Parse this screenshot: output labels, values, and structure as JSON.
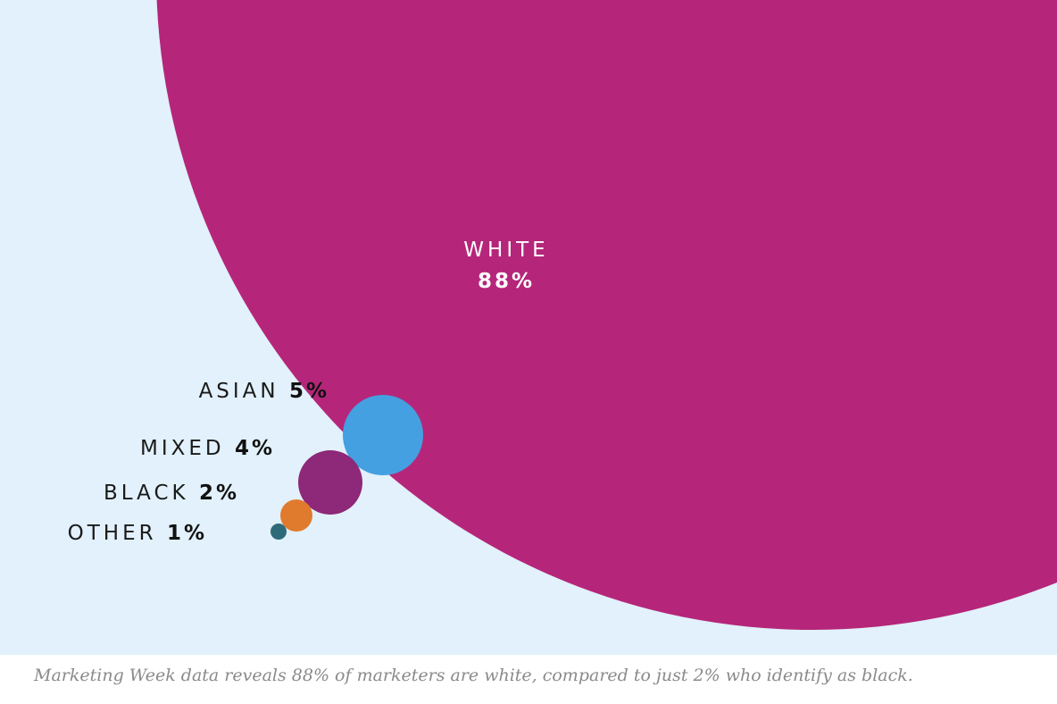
{
  "chart_data": {
    "type": "bubble",
    "categories": [
      "WHITE",
      "ASIAN",
      "MIXED",
      "BLACK",
      "OTHER"
    ],
    "values": [
      88,
      5,
      4,
      2,
      1
    ],
    "value_labels": [
      "88%",
      "5%",
      "4%",
      "2%",
      "1%"
    ],
    "colors": [
      "#b5267a",
      "#44a0e0",
      "#8e2878",
      "#e07b2e",
      "#2d6b7a"
    ]
  },
  "colors": {
    "background": "#e2f1fb",
    "caption_text": "#8a8a8a"
  },
  "caption": "Marketing Week data reveals 88% of marketers are white, compared to just 2% who identify as black."
}
